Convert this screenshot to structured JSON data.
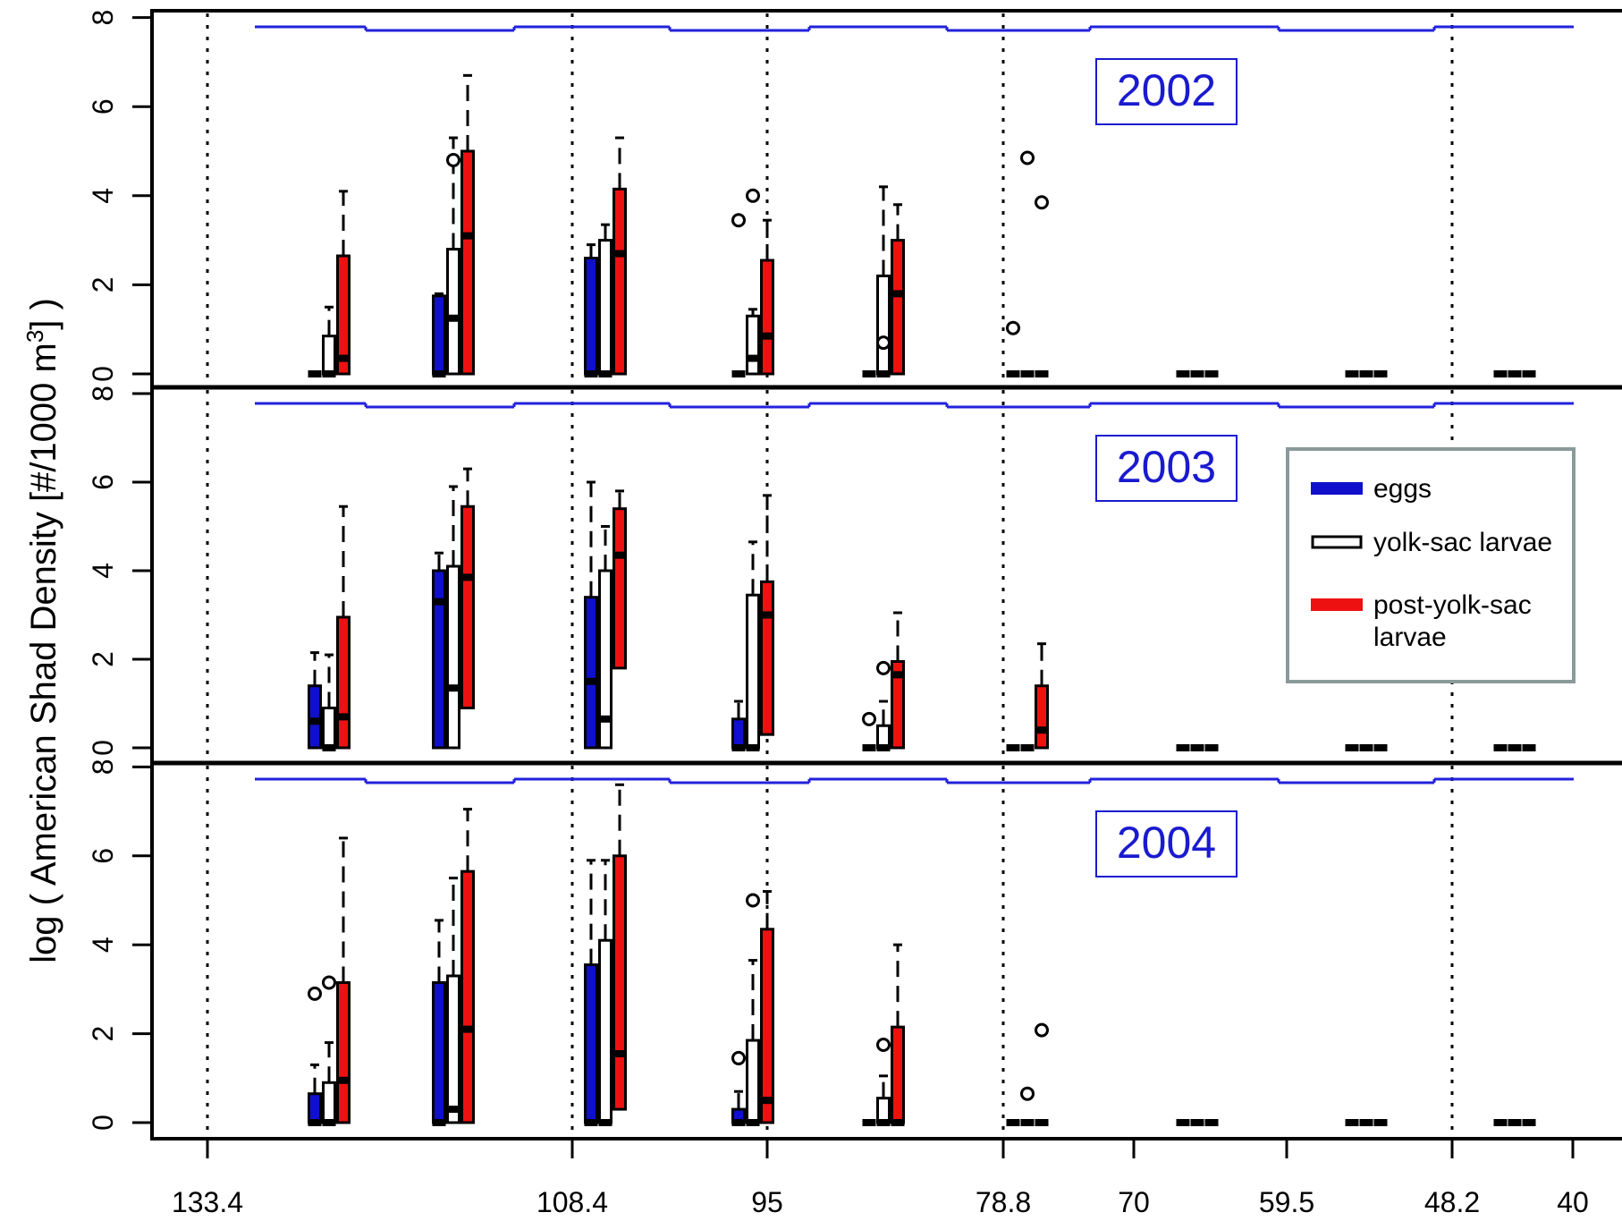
{
  "chart_data": {
    "type": "box",
    "ylabel_pre": "log ( American Shad Density [#/1000 m",
    "ylabel_sup": "3",
    "ylabel_post": "] )",
    "x_ticks": [
      "133.4",
      "108.4",
      "95",
      "78.8",
      "70",
      "59.5",
      "48.2",
      "40"
    ],
    "dotted_lines_at": [
      "133.4",
      "108.4",
      "95",
      "78.8",
      "48.2"
    ],
    "y_ticks": [
      0,
      2,
      4,
      6,
      8
    ],
    "ylim": [
      0,
      8
    ],
    "colors": {
      "eggs": "#1010cc",
      "yolk": "#ffffff",
      "post": "#ee1111",
      "step_line": "#2222dd",
      "legend_border": "#8a9a9a"
    },
    "legend": {
      "placement": "right",
      "entries": [
        {
          "key": "eggs",
          "lines": [
            "eggs"
          ]
        },
        {
          "key": "yolk",
          "lines": [
            "yolk-sac larvae"
          ]
        },
        {
          "key": "post",
          "lines": [
            "post-yolk-sac",
            "larvae"
          ]
        }
      ]
    },
    "panels": [
      {
        "year": "2002",
        "groups": [
          {
            "eggs": {
              "q1": 0,
              "med": 0,
              "q3": 0,
              "hi": 0,
              "out": []
            },
            "yolk": {
              "q1": 0,
              "med": 0,
              "q3": 0.85,
              "hi": 1.5,
              "out": []
            },
            "post": {
              "q1": 0,
              "med": 0.35,
              "q3": 2.65,
              "hi": 4.1,
              "out": []
            }
          },
          {
            "eggs": {
              "q1": 0,
              "med": 0,
              "q3": 1.75,
              "hi": 1.8,
              "out": []
            },
            "yolk": {
              "q1": 0,
              "med": 1.25,
              "q3": 2.8,
              "hi": 5.3,
              "out": [
                4.8
              ]
            },
            "post": {
              "q1": 0,
              "med": 3.1,
              "q3": 5.0,
              "hi": 6.7,
              "out": []
            }
          },
          {
            "eggs": {
              "q1": 0,
              "med": 0,
              "q3": 2.6,
              "hi": 2.9,
              "out": []
            },
            "yolk": {
              "q1": 0,
              "med": 0,
              "q3": 3.0,
              "hi": 3.35,
              "out": []
            },
            "post": {
              "q1": 0,
              "med": 2.7,
              "q3": 4.15,
              "hi": 5.3,
              "out": []
            }
          },
          {
            "eggs": {
              "q1": 0,
              "med": 0,
              "q3": 0,
              "hi": 0,
              "out": [
                3.45
              ]
            },
            "yolk": {
              "q1": 0,
              "med": 0.35,
              "q3": 1.3,
              "hi": 1.45,
              "out": [
                4.0
              ]
            },
            "post": {
              "q1": 0,
              "med": 0.85,
              "q3": 2.55,
              "hi": 3.45,
              "out": []
            }
          },
          {
            "eggs": {
              "q1": 0,
              "med": 0,
              "q3": 0,
              "hi": 0,
              "out": []
            },
            "yolk": {
              "q1": 0,
              "med": 0,
              "q3": 2.2,
              "hi": 4.2,
              "out": [
                0.7
              ]
            },
            "post": {
              "q1": 0,
              "med": 1.8,
              "q3": 3.0,
              "hi": 3.8,
              "out": []
            }
          },
          {
            "eggs": {
              "q1": 0,
              "med": 0,
              "q3": 0,
              "hi": 0,
              "out": [
                1.03
              ]
            },
            "yolk": {
              "q1": 0,
              "med": 0,
              "q3": 0,
              "hi": 0,
              "out": [
                4.85
              ]
            },
            "post": {
              "q1": 0,
              "med": 0,
              "q3": 0,
              "hi": 0,
              "out": [
                3.85
              ]
            }
          },
          {
            "eggs": {
              "q1": 0,
              "med": 0,
              "q3": 0,
              "hi": 0,
              "out": []
            },
            "yolk": {
              "q1": 0,
              "med": 0,
              "q3": 0,
              "hi": 0,
              "out": []
            },
            "post": {
              "q1": 0,
              "med": 0,
              "q3": 0,
              "hi": 0,
              "out": []
            }
          },
          {
            "eggs": {
              "q1": 0,
              "med": 0,
              "q3": 0,
              "hi": 0,
              "out": []
            },
            "yolk": {
              "q1": 0,
              "med": 0,
              "q3": 0,
              "hi": 0,
              "out": []
            },
            "post": {
              "q1": 0,
              "med": 0,
              "q3": 0,
              "hi": 0,
              "out": []
            }
          },
          {
            "eggs": {
              "q1": 0,
              "med": 0,
              "q3": 0,
              "hi": 0,
              "out": []
            },
            "yolk": {
              "q1": 0,
              "med": 0,
              "q3": 0,
              "hi": 0,
              "out": []
            },
            "post": {
              "q1": 0,
              "med": 0,
              "q3": 0,
              "hi": 0,
              "out": []
            }
          }
        ]
      },
      {
        "year": "2003",
        "groups": [
          {
            "eggs": {
              "q1": 0,
              "med": 0.6,
              "q3": 1.4,
              "hi": 2.15,
              "out": []
            },
            "yolk": {
              "q1": 0,
              "med": 0,
              "q3": 0.9,
              "hi": 2.1,
              "out": []
            },
            "post": {
              "q1": 0,
              "med": 0.7,
              "q3": 2.95,
              "hi": 5.45,
              "out": []
            }
          },
          {
            "eggs": {
              "q1": 0,
              "med": 3.3,
              "q3": 4.0,
              "hi": 4.4,
              "out": []
            },
            "yolk": {
              "q1": 0,
              "med": 1.35,
              "q3": 4.1,
              "hi": 5.9,
              "out": []
            },
            "post": {
              "q1": 0.9,
              "med": 3.85,
              "q3": 5.45,
              "hi": 6.3,
              "out": []
            }
          },
          {
            "eggs": {
              "q1": 0,
              "med": 1.5,
              "q3": 3.4,
              "hi": 6.0,
              "out": []
            },
            "yolk": {
              "q1": 0,
              "med": 0.65,
              "q3": 4.0,
              "hi": 5.0,
              "out": []
            },
            "post": {
              "q1": 1.8,
              "med": 4.35,
              "q3": 5.4,
              "hi": 5.8,
              "out": []
            }
          },
          {
            "eggs": {
              "q1": 0,
              "med": 0,
              "q3": 0.65,
              "hi": 1.05,
              "out": []
            },
            "yolk": {
              "q1": 0,
              "med": 0,
              "q3": 3.45,
              "hi": 4.65,
              "out": []
            },
            "post": {
              "q1": 0.3,
              "med": 3.0,
              "q3": 3.75,
              "hi": 5.7,
              "out": []
            }
          },
          {
            "eggs": {
              "q1": 0,
              "med": 0,
              "q3": 0,
              "hi": 0,
              "out": [
                0.65
              ]
            },
            "yolk": {
              "q1": 0,
              "med": 0,
              "q3": 0.5,
              "hi": 1.05,
              "out": [
                1.8
              ]
            },
            "post": {
              "q1": 0,
              "med": 1.65,
              "q3": 1.95,
              "hi": 3.05,
              "out": []
            }
          },
          {
            "eggs": {
              "q1": 0,
              "med": 0,
              "q3": 0,
              "hi": 0,
              "out": []
            },
            "yolk": {
              "q1": 0,
              "med": 0,
              "q3": 0,
              "hi": 0,
              "out": []
            },
            "post": {
              "q1": 0,
              "med": 0.4,
              "q3": 1.4,
              "hi": 2.35,
              "out": []
            }
          },
          {
            "eggs": {
              "q1": 0,
              "med": 0,
              "q3": 0,
              "hi": 0,
              "out": []
            },
            "yolk": {
              "q1": 0,
              "med": 0,
              "q3": 0,
              "hi": 0,
              "out": []
            },
            "post": {
              "q1": 0,
              "med": 0,
              "q3": 0,
              "hi": 0,
              "out": []
            }
          },
          {
            "eggs": {
              "q1": 0,
              "med": 0,
              "q3": 0,
              "hi": 0,
              "out": []
            },
            "yolk": {
              "q1": 0,
              "med": 0,
              "q3": 0,
              "hi": 0,
              "out": []
            },
            "post": {
              "q1": 0,
              "med": 0,
              "q3": 0,
              "hi": 0,
              "out": []
            }
          },
          {
            "eggs": {
              "q1": 0,
              "med": 0,
              "q3": 0,
              "hi": 0,
              "out": []
            },
            "yolk": {
              "q1": 0,
              "med": 0,
              "q3": 0,
              "hi": 0,
              "out": []
            },
            "post": {
              "q1": 0,
              "med": 0,
              "q3": 0,
              "hi": 0,
              "out": []
            }
          }
        ]
      },
      {
        "year": "2004",
        "groups": [
          {
            "eggs": {
              "q1": 0,
              "med": 0,
              "q3": 0.65,
              "hi": 1.3,
              "out": [
                2.9
              ]
            },
            "yolk": {
              "q1": 0,
              "med": 0,
              "q3": 0.9,
              "hi": 1.8,
              "out": [
                3.15
              ]
            },
            "post": {
              "q1": 0,
              "med": 0.95,
              "q3": 3.15,
              "hi": 6.4,
              "out": []
            }
          },
          {
            "eggs": {
              "q1": 0,
              "med": 0,
              "q3": 3.15,
              "hi": 4.55,
              "out": []
            },
            "yolk": {
              "q1": 0,
              "med": 0.3,
              "q3": 3.3,
              "hi": 5.5,
              "out": []
            },
            "post": {
              "q1": 0,
              "med": 2.1,
              "q3": 5.65,
              "hi": 7.05,
              "out": []
            }
          },
          {
            "eggs": {
              "q1": 0,
              "med": 0,
              "q3": 3.55,
              "hi": 5.9,
              "out": []
            },
            "yolk": {
              "q1": 0,
              "med": 0,
              "q3": 4.1,
              "hi": 5.9,
              "out": []
            },
            "post": {
              "q1": 0.3,
              "med": 1.55,
              "q3": 6.0,
              "hi": 7.6,
              "out": []
            }
          },
          {
            "eggs": {
              "q1": 0,
              "med": 0,
              "q3": 0.3,
              "hi": 0.7,
              "out": [
                1.45
              ]
            },
            "yolk": {
              "q1": 0,
              "med": 0,
              "q3": 1.85,
              "hi": 3.65,
              "out": [
                5.0
              ]
            },
            "post": {
              "q1": 0,
              "med": 0.5,
              "q3": 4.35,
              "hi": 5.2,
              "out": []
            }
          },
          {
            "eggs": {
              "q1": 0,
              "med": 0,
              "q3": 0,
              "hi": 0,
              "out": []
            },
            "yolk": {
              "q1": 0,
              "med": 0,
              "q3": 0.55,
              "hi": 1.05,
              "out": [
                1.75
              ]
            },
            "post": {
              "q1": 0,
              "med": 0,
              "q3": 2.15,
              "hi": 4.0,
              "out": []
            }
          },
          {
            "eggs": {
              "q1": 0,
              "med": 0,
              "q3": 0,
              "hi": 0,
              "out": []
            },
            "yolk": {
              "q1": 0,
              "med": 0,
              "q3": 0,
              "hi": 0,
              "out": [
                0.65
              ]
            },
            "post": {
              "q1": 0,
              "med": 0,
              "q3": 0,
              "hi": 0,
              "out": [
                2.08
              ]
            }
          },
          {
            "eggs": {
              "q1": 0,
              "med": 0,
              "q3": 0,
              "hi": 0,
              "out": []
            },
            "yolk": {
              "q1": 0,
              "med": 0,
              "q3": 0,
              "hi": 0,
              "out": []
            },
            "post": {
              "q1": 0,
              "med": 0,
              "q3": 0,
              "hi": 0,
              "out": []
            }
          },
          {
            "eggs": {
              "q1": 0,
              "med": 0,
              "q3": 0,
              "hi": 0,
              "out": []
            },
            "yolk": {
              "q1": 0,
              "med": 0,
              "q3": 0,
              "hi": 0,
              "out": []
            },
            "post": {
              "q1": 0,
              "med": 0,
              "q3": 0,
              "hi": 0,
              "out": []
            }
          },
          {
            "eggs": {
              "q1": 0,
              "med": 0,
              "q3": 0,
              "hi": 0,
              "out": []
            },
            "yolk": {
              "q1": 0,
              "med": 0,
              "q3": 0,
              "hi": 0,
              "out": []
            },
            "post": {
              "q1": 0,
              "med": 0,
              "q3": 0,
              "hi": 0,
              "out": []
            }
          }
        ]
      }
    ]
  }
}
